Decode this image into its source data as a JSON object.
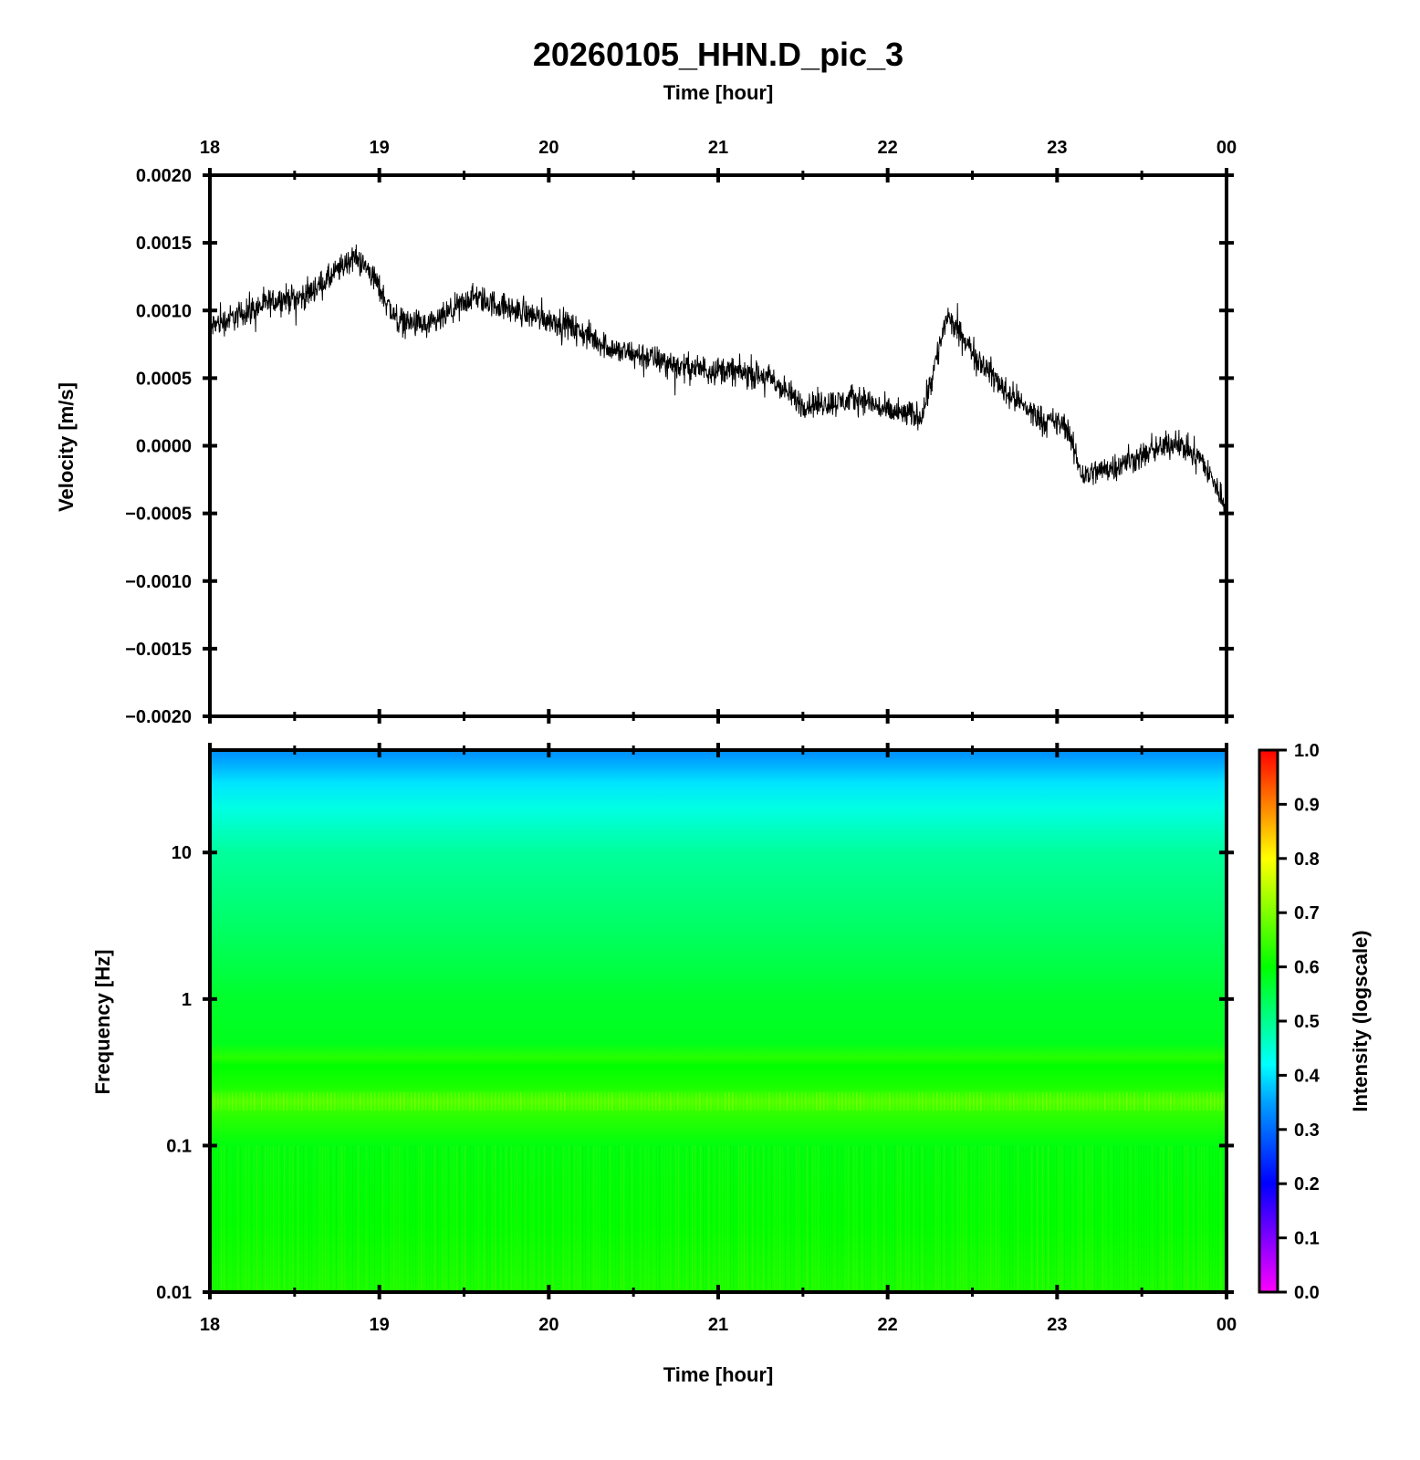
{
  "chart_data": [
    {
      "type": "line",
      "title": "20260105_HHN.D_pic_3",
      "top_xlabel": "Time [hour]",
      "ylabel": "Velocity [m/s]",
      "x_ticks": [
        "18",
        "19",
        "20",
        "21",
        "22",
        "23",
        "00"
      ],
      "xlim": [
        18,
        24
      ],
      "ylim": [
        -0.002,
        0.002
      ],
      "y_ticks": [
        {
          "value": 0.002,
          "label": "0.0020"
        },
        {
          "value": 0.0015,
          "label": "0.0015"
        },
        {
          "value": 0.001,
          "label": "0.0010"
        },
        {
          "value": 0.0005,
          "label": "0.0005"
        },
        {
          "value": 0.0,
          "label": "0.0000"
        },
        {
          "value": -0.0005,
          "label": "−0.0005"
        },
        {
          "value": -0.001,
          "label": "−0.0010"
        },
        {
          "value": -0.0015,
          "label": "−0.0015"
        },
        {
          "value": -0.002,
          "label": "−0.0020"
        }
      ],
      "series": [
        {
          "name": "velocity",
          "color": "#000000",
          "noise_amplitude": 0.00015,
          "trend": [
            [
              18.0,
              0.00088
            ],
            [
              18.2,
              0.00098
            ],
            [
              18.4,
              0.00108
            ],
            [
              18.55,
              0.0011
            ],
            [
              18.7,
              0.00123
            ],
            [
              18.85,
              0.0014
            ],
            [
              18.95,
              0.00128
            ],
            [
              19.1,
              0.00093
            ],
            [
              19.3,
              0.00088
            ],
            [
              19.55,
              0.0011
            ],
            [
              19.8,
              0.001
            ],
            [
              20.1,
              0.0009
            ],
            [
              20.4,
              0.0007
            ],
            [
              20.6,
              0.00065
            ],
            [
              20.8,
              0.00058
            ],
            [
              21.1,
              0.00055
            ],
            [
              21.3,
              0.0005
            ],
            [
              21.5,
              0.0003
            ],
            [
              21.7,
              0.00032
            ],
            [
              21.85,
              0.00035
            ],
            [
              22.0,
              0.00025
            ],
            [
              22.2,
              0.00022
            ],
            [
              22.35,
              0.00095
            ],
            [
              22.5,
              0.0007
            ],
            [
              22.7,
              0.0004
            ],
            [
              22.9,
              0.0002
            ],
            [
              23.05,
              0.00015
            ],
            [
              23.15,
              -0.00022
            ],
            [
              23.35,
              -0.00015
            ],
            [
              23.55,
              -5e-05
            ],
            [
              23.7,
              3e-05
            ],
            [
              23.85,
              -0.0001
            ],
            [
              24.0,
              -0.00045
            ]
          ]
        }
      ]
    },
    {
      "type": "heatmap",
      "xlabel": "Time [hour]",
      "ylabel": "Frequency [Hz]",
      "x_ticks": [
        "18",
        "19",
        "20",
        "21",
        "22",
        "23",
        "00"
      ],
      "xlim": [
        18,
        24
      ],
      "yscale": "log",
      "ylim": [
        0.01,
        50
      ],
      "y_ticks": [
        {
          "value": 0.01,
          "label": "0.01"
        },
        {
          "value": 0.1,
          "label": "0.1"
        },
        {
          "value": 1,
          "label": "1"
        },
        {
          "value": 10,
          "label": "10"
        }
      ],
      "intensity_profile": [
        [
          0.01,
          0.62
        ],
        [
          0.03,
          0.6
        ],
        [
          0.1,
          0.59
        ],
        [
          0.17,
          0.64
        ],
        [
          0.2,
          0.66
        ],
        [
          0.25,
          0.62
        ],
        [
          0.35,
          0.6
        ],
        [
          0.4,
          0.63
        ],
        [
          0.5,
          0.58
        ],
        [
          1,
          0.57
        ],
        [
          3,
          0.53
        ],
        [
          10,
          0.49
        ],
        [
          20,
          0.44
        ],
        [
          30,
          0.4
        ],
        [
          40,
          0.36
        ],
        [
          50,
          0.33
        ]
      ],
      "colorbar": {
        "label": "Intensity (logscale)",
        "range": [
          0.0,
          1.0
        ],
        "ticks": [
          "0.0",
          "0.1",
          "0.2",
          "0.3",
          "0.4",
          "0.5",
          "0.6",
          "0.7",
          "0.8",
          "0.9",
          "1.0"
        ],
        "colors": [
          [
            0.0,
            "#ff00ff"
          ],
          [
            0.2,
            "#0000ff"
          ],
          [
            0.35,
            "#00a0ff"
          ],
          [
            0.42,
            "#00ffff"
          ],
          [
            0.6,
            "#00ff00"
          ],
          [
            0.8,
            "#ffff00"
          ],
          [
            0.9,
            "#ff8000"
          ],
          [
            1.0,
            "#ff0000"
          ]
        ]
      }
    }
  ]
}
